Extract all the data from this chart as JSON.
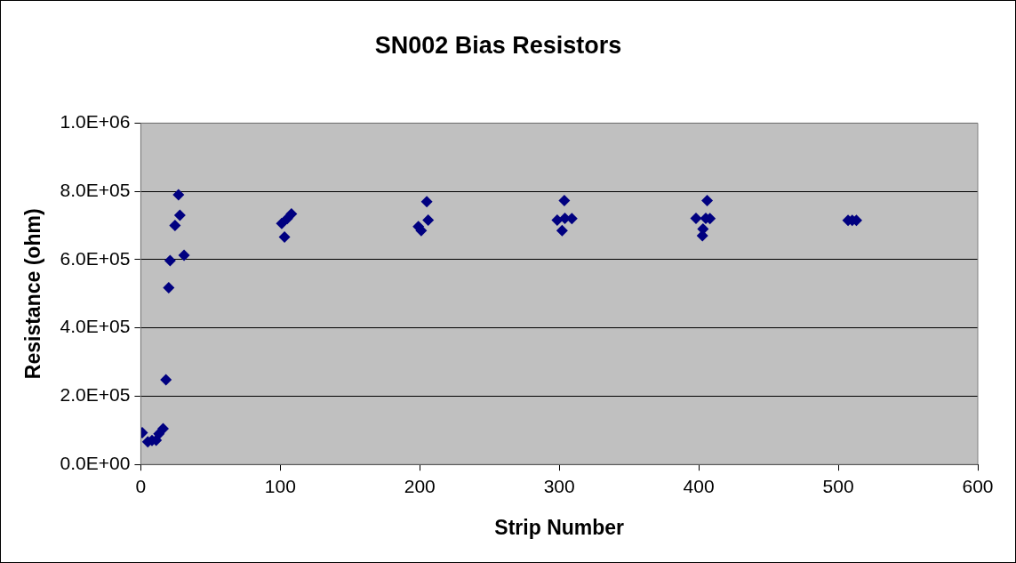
{
  "chart_data": {
    "type": "scatter",
    "title": "SN002 Bias Resistors",
    "xlabel": "Strip Number",
    "ylabel": "Resistance (ohm)",
    "series": [
      {
        "color": "#000080",
        "x": [
          1,
          5,
          8,
          11,
          13,
          16,
          18,
          20,
          21,
          24.5,
          27,
          28,
          31,
          101,
          103,
          105,
          108,
          199,
          201,
          205,
          206,
          298.5,
          302,
          303.6,
          304,
          309,
          398,
          402.6,
          403,
          405,
          406,
          408,
          507,
          510,
          513
        ],
        "values": [
          93000,
          66000,
          70000,
          71000,
          90000,
          105000,
          248000,
          518000,
          597000,
          700000,
          790000,
          730000,
          613000,
          706000,
          666000,
          720000,
          734000,
          697000,
          685000,
          770000,
          716000,
          716000,
          685000,
          773000,
          721000,
          720000,
          721000,
          670000,
          690000,
          721000,
          773000,
          720000,
          715000,
          715000,
          715000
        ]
      }
    ],
    "xlim": [
      0,
      600
    ],
    "xticks": [
      0,
      100,
      200,
      300,
      400,
      500,
      600
    ],
    "ylim": [
      0,
      1000000
    ],
    "yticks": [
      {
        "value": 0,
        "label": "0.0E+00"
      },
      {
        "value": 200000,
        "label": "2.0E+05"
      },
      {
        "value": 400000,
        "label": "4.0E+05"
      },
      {
        "value": 600000,
        "label": "6.0E+05"
      },
      {
        "value": 800000,
        "label": "8.0E+05"
      },
      {
        "value": 1000000,
        "label": "1.0E+06"
      }
    ],
    "grid": "y",
    "legend": false,
    "marker": "diamond"
  }
}
